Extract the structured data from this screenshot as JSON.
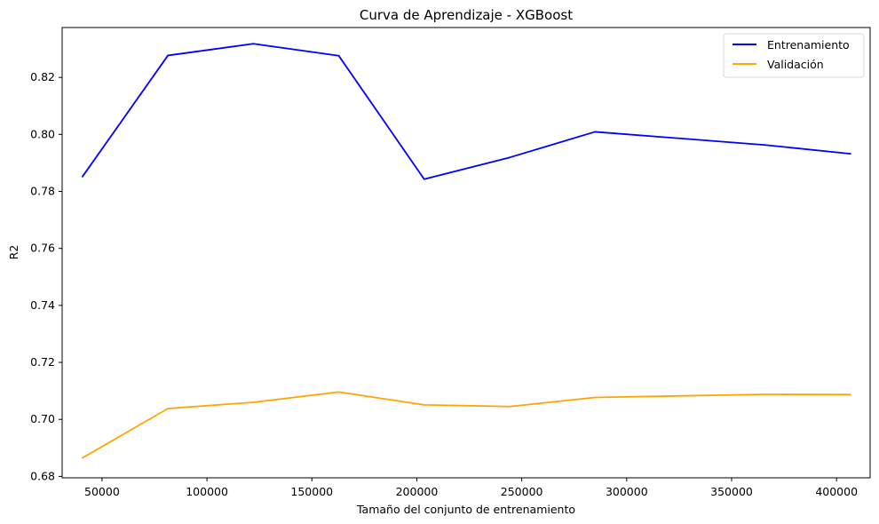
{
  "chart_data": {
    "type": "line",
    "title": "Curva de Aprendizaje - XGBoost",
    "xlabel": "Tamaño del conjunto de entrenamiento",
    "ylabel": "R2",
    "xlim": [
      31000,
      416000
    ],
    "ylim": [
      0.6795,
      0.8375
    ],
    "xticks": [
      50000,
      100000,
      150000,
      200000,
      250000,
      300000,
      350000,
      400000
    ],
    "yticks": [
      0.68,
      0.7,
      0.72,
      0.74,
      0.76,
      0.78,
      0.8,
      0.82
    ],
    "grid": false,
    "legend_position": "top-right",
    "x": [
      40700,
      81400,
      122100,
      162800,
      203500,
      244200,
      284900,
      365900,
      406600
    ],
    "series": [
      {
        "name": "Entrenamiento",
        "color": "#0000ff",
        "values": [
          0.7852,
          0.8277,
          0.8318,
          0.8276,
          0.7843,
          0.7919,
          0.8009,
          0.7963,
          0.7932
        ]
      },
      {
        "name": "Validación",
        "color": "#ffa500",
        "values": [
          0.6865,
          0.7038,
          0.706,
          0.7096,
          0.7051,
          0.7045,
          0.7077,
          0.7088,
          0.7087
        ]
      }
    ]
  }
}
